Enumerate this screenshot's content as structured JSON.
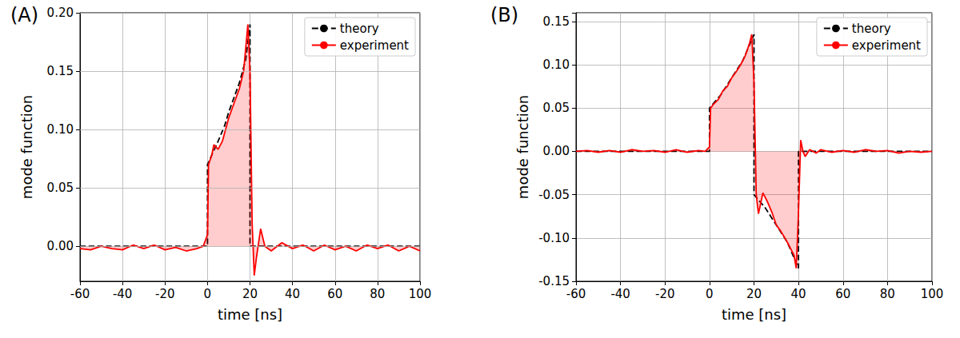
{
  "chart_data": [
    {
      "type": "line",
      "title": "(A)",
      "x_label": "time [ns]",
      "y_label": "mode function",
      "xlim": [
        -60,
        100
      ],
      "xticks": [
        -60,
        -40,
        -20,
        0,
        20,
        40,
        60,
        80,
        100
      ],
      "ylim": [
        -0.03,
        0.2
      ],
      "yticks": [
        {
          "value": 0,
          "label": "0.00"
        },
        {
          "value": 0.05,
          "label": "0.05"
        },
        {
          "value": 0.1,
          "label": "0.10"
        },
        {
          "value": 0.15,
          "label": "0.15"
        },
        {
          "value": 0.2,
          "label": "0.20"
        }
      ],
      "grid": true,
      "legend": "upper right",
      "series": [
        {
          "name": "theory",
          "color": "#000000",
          "line_style": "dashed",
          "x": [
            -60,
            0,
            0,
            2,
            5,
            8,
            10,
            12,
            15,
            18,
            20,
            20,
            100
          ],
          "values": [
            0,
            0,
            0.07,
            0.078,
            0.09,
            0.103,
            0.115,
            0.125,
            0.14,
            0.16,
            0.19,
            0,
            0
          ]
        },
        {
          "name": "experiment",
          "color": "#ff0000",
          "line_style": "solid",
          "x": [
            -60,
            -55,
            -50,
            -45,
            -40,
            -35,
            -30,
            -25,
            -20,
            -15,
            -10,
            -5,
            -2,
            0,
            0.5,
            2,
            3,
            5,
            7,
            10,
            13,
            15,
            17,
            18,
            19,
            20,
            21,
            22,
            23,
            25,
            27,
            30,
            35,
            40,
            45,
            50,
            55,
            60,
            65,
            70,
            75,
            80,
            85,
            90,
            95,
            100
          ],
          "values": [
            -0.002,
            -0.003,
            0.0,
            -0.002,
            -0.003,
            0.001,
            -0.002,
            0.001,
            -0.003,
            -0.001,
            -0.004,
            -0.002,
            0.0,
            0.01,
            0.07,
            0.078,
            0.087,
            0.083,
            0.09,
            0.11,
            0.125,
            0.135,
            0.15,
            0.17,
            0.19,
            0.15,
            0.02,
            -0.025,
            -0.01,
            0.015,
            0.0,
            -0.004,
            0.003,
            -0.002,
            0.001,
            -0.004,
            0.001,
            -0.003,
            0.0,
            -0.004,
            0.001,
            -0.002,
            0.001,
            -0.004,
            0.0,
            -0.004
          ]
        }
      ]
    },
    {
      "type": "line",
      "title": "(B)",
      "x_label": "time [ns]",
      "y_label": "mode function",
      "xlim": [
        -60,
        100
      ],
      "xticks": [
        -60,
        -40,
        -20,
        0,
        20,
        40,
        60,
        80,
        100
      ],
      "ylim": [
        -0.15,
        0.16
      ],
      "yticks": [
        {
          "value": -0.15,
          "label": "-0.15"
        },
        {
          "value": -0.1,
          "label": "-0.10"
        },
        {
          "value": -0.05,
          "label": "-0.05"
        },
        {
          "value": 0,
          "label": "0.00"
        },
        {
          "value": 0.05,
          "label": "0.05"
        },
        {
          "value": 0.1,
          "label": "0.10"
        },
        {
          "value": 0.15,
          "label": "0.15"
        }
      ],
      "grid": true,
      "legend": "upper right",
      "series": [
        {
          "name": "theory",
          "color": "#000000",
          "line_style": "dashed",
          "x": [
            -60,
            0,
            0,
            5,
            10,
            15,
            20,
            20,
            25,
            30,
            35,
            40,
            40,
            100
          ],
          "values": [
            0,
            0,
            0.05,
            0.065,
            0.085,
            0.105,
            0.135,
            -0.05,
            -0.065,
            -0.085,
            -0.105,
            -0.135,
            0,
            0
          ]
        },
        {
          "name": "experiment",
          "color": "#ff0000",
          "line_style": "solid",
          "x": [
            -60,
            -55,
            -50,
            -45,
            -40,
            -35,
            -30,
            -25,
            -20,
            -15,
            -10,
            -5,
            -2,
            0,
            0.5,
            2,
            4,
            6,
            8,
            10,
            12,
            14,
            16,
            18,
            19,
            20,
            21,
            22,
            23,
            24,
            26,
            28,
            30,
            32,
            35,
            37,
            38,
            39,
            40,
            41,
            42,
            43,
            45,
            48,
            50,
            55,
            60,
            65,
            70,
            75,
            80,
            85,
            90,
            95,
            100
          ],
          "values": [
            0.0,
            0.001,
            -0.001,
            0.001,
            -0.001,
            0.002,
            0.0,
            0.001,
            -0.001,
            0.002,
            -0.001,
            0.001,
            0.0,
            0.005,
            0.05,
            0.055,
            0.06,
            0.07,
            0.075,
            0.085,
            0.092,
            0.1,
            0.11,
            0.125,
            0.135,
            0.08,
            -0.05,
            -0.072,
            -0.06,
            -0.048,
            -0.058,
            -0.07,
            -0.085,
            -0.092,
            -0.105,
            -0.115,
            -0.12,
            -0.135,
            -0.07,
            0.013,
            0.0,
            -0.006,
            0.002,
            -0.002,
            0.002,
            -0.001,
            0.001,
            -0.001,
            0.002,
            0.0,
            0.001,
            -0.002,
            0.0,
            -0.001,
            0.0
          ]
        }
      ]
    }
  ]
}
